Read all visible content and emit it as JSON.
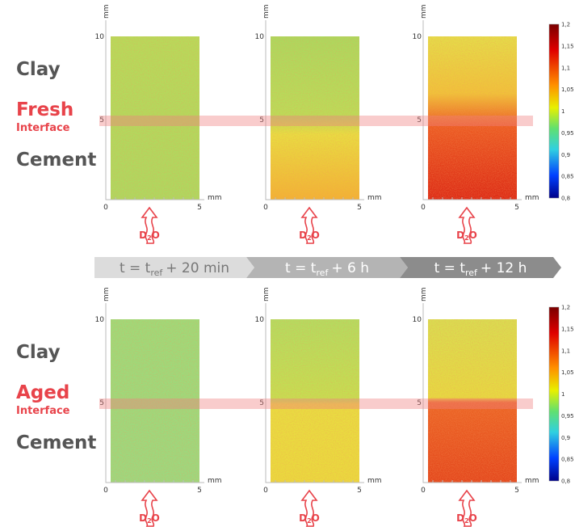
{
  "rows": [
    {
      "labels": {
        "top": "Clay",
        "interface": "Fresh",
        "interface_sub": "Interface",
        "bottom": "Cement"
      }
    },
    {
      "labels": {
        "top": "Clay",
        "interface": "Aged",
        "interface_sub": "Interface",
        "bottom": "Cement"
      }
    }
  ],
  "axes": {
    "x_ticks": [
      "0",
      "5"
    ],
    "y_ticks": [
      "10",
      "5"
    ],
    "unit": "mm"
  },
  "source_label": {
    "main": "D",
    "sub": "2",
    "tail": "O"
  },
  "time_steps": [
    {
      "main": "t = t",
      "sub": "ref",
      "rest": "+ 20 min"
    },
    {
      "main": "t = t",
      "sub": "ref",
      "rest": "+ 6 h"
    },
    {
      "main": "t = t",
      "sub": "ref",
      "rest": "+ 12 h"
    }
  ],
  "colorbar_ticks": [
    "1,2",
    "1,15",
    "1,1",
    "1,05",
    "1",
    "0,95",
    "0,9",
    "0,85",
    "0,8"
  ]
}
